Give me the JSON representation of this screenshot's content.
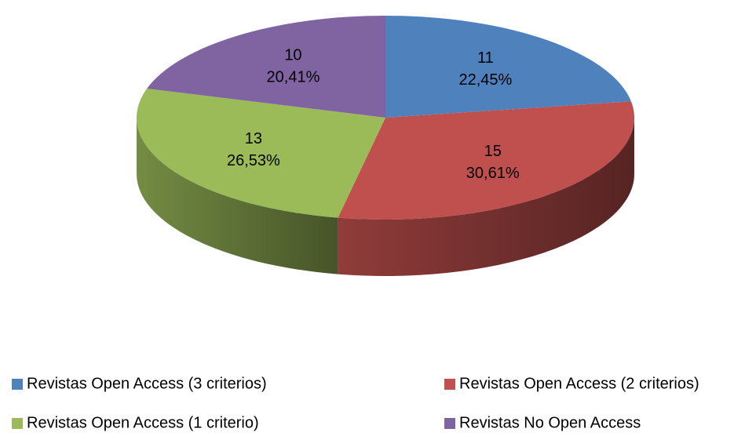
{
  "chart_data": {
    "type": "pie3d",
    "categories": [
      "Revistas Open Access (3 criterios)",
      "Revistas Open Access (2 criterios)",
      "Revistas Open Access (1 criterio)",
      "Revistas No Open Access"
    ],
    "values": [
      11,
      15,
      13,
      10
    ],
    "percentage_labels": [
      "22,45%",
      "30,61%",
      "26,53%",
      "20,41%"
    ],
    "colors": [
      "#4f81bd",
      "#c0504d",
      "#9bbb59",
      "#8064a2"
    ],
    "legend": "bottom"
  }
}
